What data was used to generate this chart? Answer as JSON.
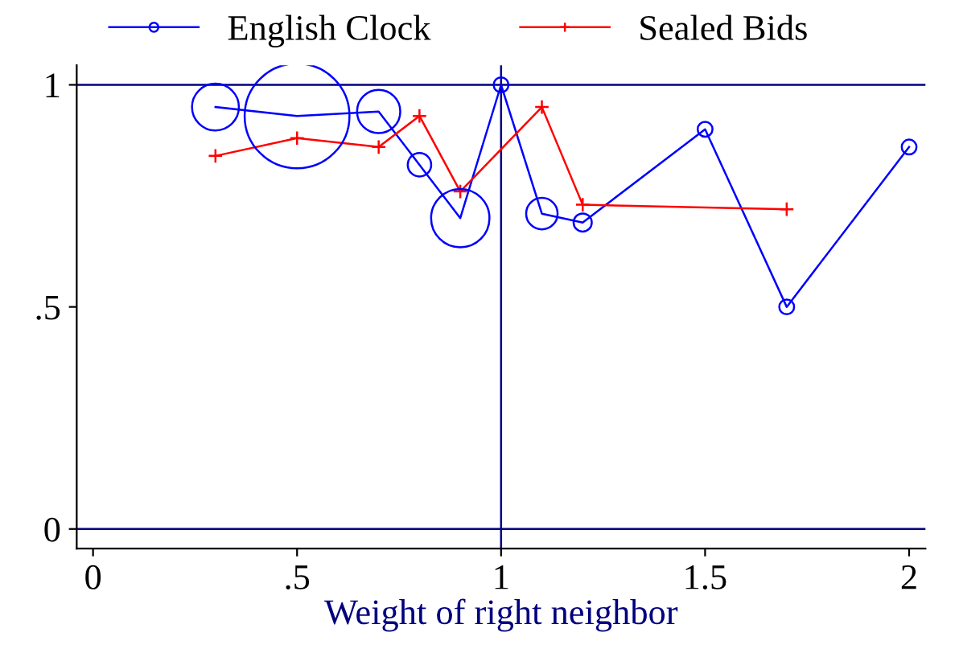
{
  "chart_data": {
    "type": "line",
    "xlabel": "Weight of right neighbor",
    "xlim": [
      -0.04,
      2.04
    ],
    "ylim": [
      -0.044,
      1.044
    ],
    "xticks": [
      0,
      {
        "value": 0.5,
        "label": ".5"
      },
      1,
      1.5,
      2
    ],
    "yticks": [
      0,
      {
        "value": 0.5,
        "label": ".5"
      },
      1
    ],
    "series": [
      {
        "name": "English Clock",
        "type": "line",
        "color": "#0000ff",
        "marker": "none",
        "x": [
          0.3,
          0.5,
          0.7,
          0.8,
          0.9,
          1.0,
          1.1,
          1.2,
          1.5,
          1.7,
          2.0
        ],
        "values": [
          0.95,
          0.93,
          0.94,
          0.82,
          0.7,
          1.0,
          0.71,
          0.69,
          0.9,
          0.5,
          0.86
        ]
      },
      {
        "type": "bubble",
        "color": "#0000ff",
        "x": [
          0.3,
          0.5,
          0.7,
          0.8,
          0.9,
          1.0,
          1.1,
          1.2,
          1.5,
          1.7,
          2.0
        ],
        "values": [
          0.95,
          0.93,
          0.94,
          0.82,
          0.7,
          1.0,
          0.71,
          0.69,
          0.9,
          0.5,
          0.86
        ],
        "sizes": [
          0.2,
          1,
          0.17,
          0.05,
          0.31,
          0.02,
          0.09,
          0.03,
          0.02,
          0.02,
          0.02
        ]
      },
      {
        "name": "Sealed Bids",
        "color": "#ff0000",
        "marker": "cross",
        "x": [
          0.3,
          0.5,
          0.7,
          0.8,
          0.9,
          1.1,
          1.2,
          1.7
        ],
        "values": [
          0.84,
          0.88,
          0.86,
          0.93,
          0.76,
          0.95,
          0.73,
          0.72
        ]
      }
    ],
    "ref_lines": [
      {
        "axis": "y",
        "value": 0,
        "color": "#000080"
      },
      {
        "axis": "y",
        "value": 1,
        "color": "#000080"
      },
      {
        "axis": "x",
        "value": 1,
        "color": "#000080"
      }
    ],
    "legend": "top",
    "grid": false
  }
}
